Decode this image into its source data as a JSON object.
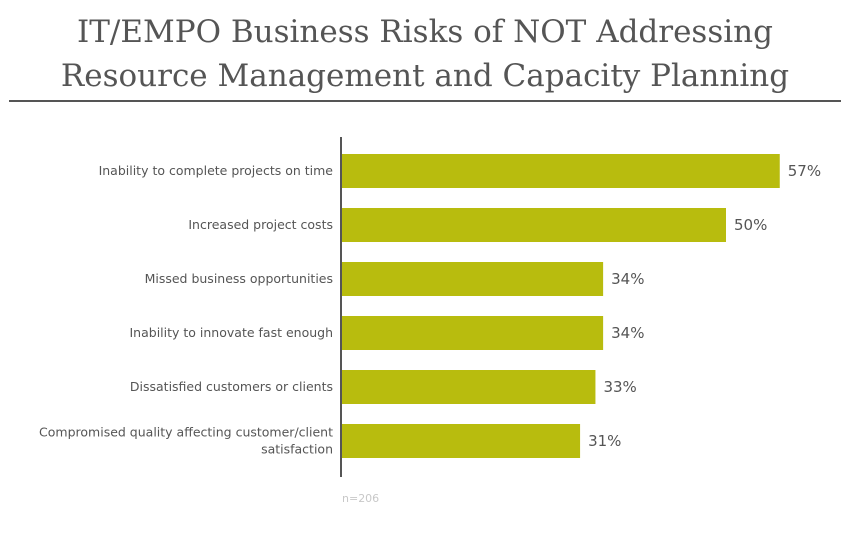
{
  "chart_data": {
    "type": "bar",
    "orientation": "horizontal",
    "title_lines": [
      "IT/EMPO Business Risks of NOT Addressing",
      "Resource Management and Capacity Planning"
    ],
    "categories": [
      [
        "Inability to complete projects on time"
      ],
      [
        "Increased project costs"
      ],
      [
        "Missed business opportunities"
      ],
      [
        "Inability to innovate fast enough"
      ],
      [
        "Dissatisfied customers or clients"
      ],
      [
        "Compromised quality affecting customer/client",
        "satisfaction"
      ]
    ],
    "values": [
      57,
      50,
      34,
      34,
      33,
      31
    ],
    "value_labels": [
      "57%",
      "50%",
      "34%",
      "34%",
      "33%",
      "31%"
    ],
    "xlim": [
      0,
      100
    ],
    "bar_color": "#b8bc0e",
    "axis_color": "#555555",
    "grid": false,
    "note": "n=206"
  }
}
